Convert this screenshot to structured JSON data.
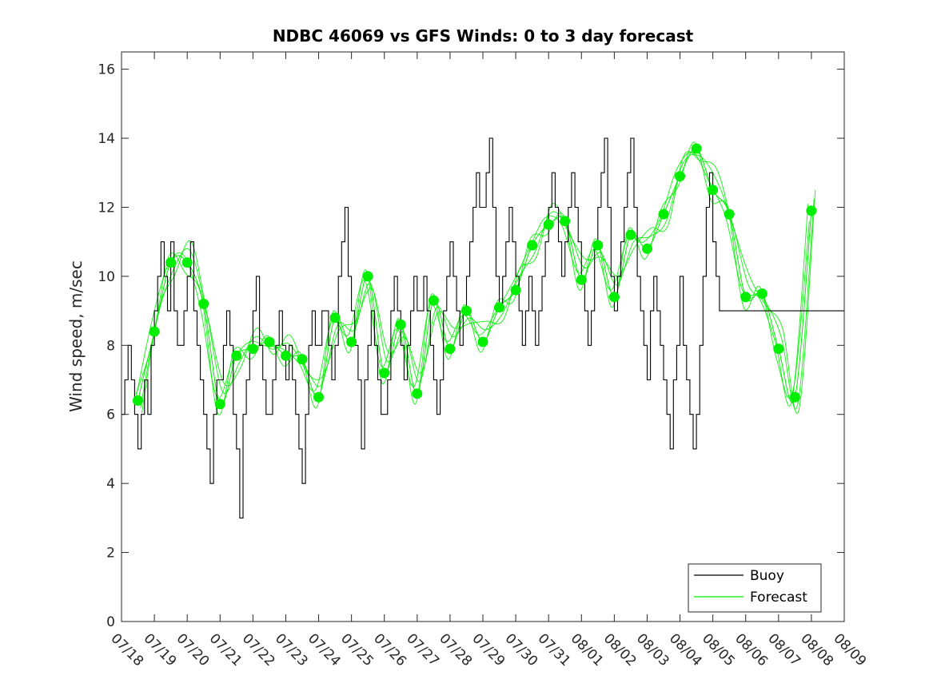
{
  "chart_data": {
    "type": "line",
    "title": "NDBC 46069 vs GFS Winds: 0 to 3 day forecast",
    "xlabel": "",
    "ylabel": "Wind speed, m/sec",
    "xlim": [
      0,
      22
    ],
    "ylim": [
      0,
      16.5
    ],
    "yticks": [
      0,
      2,
      4,
      6,
      8,
      10,
      12,
      14,
      16
    ],
    "ytick_labels": [
      "0",
      "2",
      "4",
      "6",
      "8",
      "10",
      "12",
      "14",
      "16"
    ],
    "x_tick_labels": [
      "07/18",
      "07/19",
      "07/20",
      "07/21",
      "07/22",
      "07/23",
      "07/24",
      "07/25",
      "07/26",
      "07/27",
      "07/28",
      "07/29",
      "07/30",
      "07/31",
      "08/01",
      "08/02",
      "08/03",
      "08/04",
      "08/05",
      "08/06",
      "08/07",
      "08/08",
      "08/09"
    ],
    "grid": false,
    "legend": {
      "placement": "bottom-right",
      "entries": [
        "Buoy",
        "Forecast"
      ]
    },
    "colors": {
      "buoy": "#000000",
      "forecast": "#00ee00",
      "axes": "#262626"
    },
    "series": [
      {
        "name": "Buoy",
        "x": [
          0,
          0.1,
          0.2,
          0.3,
          0.4,
          0.5,
          0.6,
          0.7,
          0.8,
          0.9,
          1.0,
          1.1,
          1.2,
          1.3,
          1.4,
          1.5,
          1.6,
          1.7,
          1.8,
          1.9,
          2.0,
          2.1,
          2.2,
          2.3,
          2.4,
          2.5,
          2.6,
          2.7,
          2.8,
          2.9,
          3.0,
          3.1,
          3.2,
          3.3,
          3.4,
          3.5,
          3.6,
          3.7,
          3.8,
          3.9,
          4.0,
          4.1,
          4.2,
          4.3,
          4.4,
          4.5,
          4.6,
          4.7,
          4.8,
          4.9,
          5.0,
          5.1,
          5.2,
          5.3,
          5.4,
          5.5,
          5.6,
          5.7,
          5.8,
          5.9,
          6.0,
          6.1,
          6.2,
          6.3,
          6.4,
          6.5,
          6.6,
          6.7,
          6.8,
          6.9,
          7.0,
          7.1,
          7.2,
          7.3,
          7.4,
          7.5,
          7.6,
          7.7,
          7.8,
          7.9,
          8.0,
          8.1,
          8.2,
          8.3,
          8.4,
          8.5,
          8.6,
          8.7,
          8.8,
          8.9,
          9.0,
          9.1,
          9.2,
          9.3,
          9.4,
          9.5,
          9.6,
          9.7,
          9.8,
          9.9,
          10.0,
          10.1,
          10.2,
          10.3,
          10.4,
          10.5,
          10.6,
          10.7,
          10.8,
          10.9,
          11.0,
          11.1,
          11.2,
          11.3,
          11.4,
          11.5,
          11.6,
          11.7,
          11.8,
          11.9,
          12.0,
          12.1,
          12.2,
          12.3,
          12.4,
          12.5,
          12.6,
          12.7,
          12.8,
          12.9,
          13.0,
          13.1,
          13.2,
          13.3,
          13.4,
          13.5,
          13.6,
          13.7,
          13.8,
          13.9,
          14.0,
          14.1,
          14.2,
          14.3,
          14.4,
          14.5,
          14.6,
          14.7,
          14.8,
          14.9,
          15.0,
          15.1,
          15.2,
          15.3,
          15.4,
          15.5,
          15.6,
          15.7,
          15.8,
          15.9,
          16.0,
          16.1,
          16.2,
          16.3,
          16.4,
          16.5,
          16.6,
          16.7,
          16.8,
          16.9,
          17.0,
          17.1,
          17.2,
          17.3,
          17.4,
          17.5,
          17.6,
          17.7,
          17.8,
          17.9,
          18.0,
          18.1,
          18.2,
          18.3,
          18.4,
          18.5,
          18.6,
          18.7,
          18.8,
          18.9,
          19.0,
          19.1,
          19.2,
          19.3,
          19.4,
          19.5,
          19.6,
          19.7,
          19.8,
          19.9,
          20.0,
          20.1,
          20.2,
          20.3,
          20.4,
          20.5,
          20.6,
          20.7,
          20.8,
          20.9,
          21.0,
          21.1,
          21.2,
          21.3,
          21.4,
          21.5,
          21.6,
          21.7,
          21.8,
          21.9,
          22.0
        ],
        "values": [
          6,
          7,
          8,
          7,
          6,
          5,
          6,
          7,
          6,
          8,
          9,
          10,
          11,
          10,
          9,
          11,
          9,
          8,
          8,
          9,
          10,
          11,
          9,
          8,
          7,
          6,
          5,
          4,
          6,
          7,
          7,
          8,
          9,
          8,
          6,
          5,
          3,
          6,
          7,
          8,
          9,
          10,
          8,
          7,
          6,
          6,
          7,
          8,
          9,
          8,
          7,
          8,
          7,
          6,
          5,
          4,
          6,
          8,
          9,
          8,
          8,
          9,
          9,
          8,
          7,
          8,
          10,
          11,
          12,
          10,
          9,
          8,
          7,
          5,
          7,
          8,
          9,
          8,
          7,
          6,
          6,
          7,
          9,
          10,
          9,
          8,
          7,
          8,
          9,
          10,
          9,
          9,
          10,
          9,
          8,
          7,
          6,
          7,
          9,
          10,
          11,
          10,
          9,
          8,
          9,
          10,
          11,
          12,
          13,
          12,
          12,
          13,
          14,
          12,
          10,
          9,
          10,
          11,
          12,
          11,
          10,
          9,
          8,
          9,
          10,
          9,
          8,
          9,
          10,
          11,
          12,
          13,
          12,
          11,
          10,
          11,
          12,
          13,
          12,
          11,
          10,
          9,
          8,
          9,
          11,
          12,
          13,
          14,
          12,
          10,
          9,
          10,
          11,
          12,
          13,
          14,
          12,
          10,
          9,
          8,
          7,
          9,
          10,
          9,
          8,
          7,
          6,
          5,
          7,
          8,
          10,
          8,
          7,
          6,
          5,
          6,
          8,
          10,
          12,
          13,
          11,
          10,
          9,
          9,
          9,
          9,
          9,
          9,
          9,
          9,
          9,
          9,
          9,
          9,
          9,
          9,
          9,
          9,
          9,
          9,
          9,
          9,
          9,
          9,
          9,
          9,
          9,
          9,
          9,
          9,
          9,
          9,
          9,
          9,
          9,
          9,
          9,
          9,
          9,
          9,
          9
        ]
      },
      {
        "name": "Forecast",
        "x": [
          0.5,
          1.0,
          1.5,
          2.0,
          2.5,
          3.0,
          3.5,
          4.0,
          4.5,
          5.0,
          5.5,
          6.0,
          6.5,
          7.0,
          7.5,
          8.0,
          8.5,
          9.0,
          9.5,
          10.0,
          10.5,
          11.0,
          11.5,
          12.0,
          12.5,
          13.0,
          13.5,
          14.0,
          14.5,
          15.0,
          15.5,
          16.0,
          16.5,
          17.0,
          17.5,
          18.0,
          18.5,
          19.0,
          19.5,
          20.0,
          20.5,
          21.0
        ],
        "values": [
          6.4,
          8.4,
          10.4,
          10.4,
          9.2,
          6.3,
          7.7,
          7.9,
          8.1,
          7.7,
          7.6,
          6.5,
          8.8,
          8.1,
          10.0,
          7.2,
          8.6,
          6.6,
          9.3,
          7.9,
          9.0,
          8.1,
          9.1,
          9.6,
          10.9,
          11.5,
          11.6,
          9.9,
          10.9,
          9.4,
          11.2,
          10.8,
          11.8,
          12.9,
          13.7,
          12.5,
          11.8,
          9.4,
          9.5,
          7.9,
          6.5,
          11.9
        ]
      }
    ]
  }
}
